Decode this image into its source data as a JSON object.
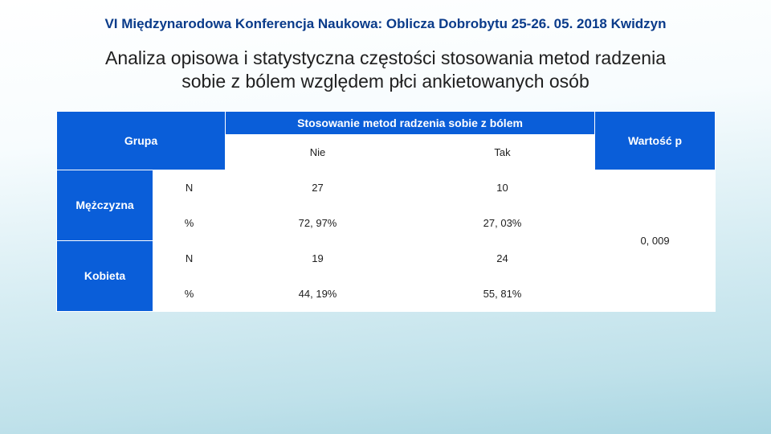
{
  "header": {
    "conference": "VI Międzynarodowa Konferencja Naukowa: Oblicza Dobrobytu 25-26. 05. 2018 Kwidzyn",
    "title_l1": "Analiza opisowa i statystyczna częstości stosowania metod radzenia",
    "title_l2": "sobie z bólem względem płci ankietowanych osób"
  },
  "table": {
    "head": {
      "grupa": "Grupa",
      "stosowanie": "Stosowanie metod radzenia sobie z bólem",
      "wartosc_p": "Wartość p",
      "nie": "Nie",
      "tak": "Tak"
    },
    "rows": {
      "mezczyzna": {
        "label": "Mężczyzna",
        "n_label": "N",
        "pct_label": "%",
        "n_nie": "27",
        "n_tak": "10",
        "pct_nie": "72, 97%",
        "pct_tak": "27, 03%"
      },
      "kobieta": {
        "label": "Kobieta",
        "n_label": "N",
        "pct_label": "%",
        "n_nie": "19",
        "n_tak": "24",
        "pct_nie": "44, 19%",
        "pct_tak": "55, 81%"
      },
      "p_value": "0, 009"
    }
  },
  "style": {
    "header_bg": "#0a5ed9",
    "header_fg": "#ffffff",
    "cell_bg": "#ffffff",
    "cell_fg": "#202020",
    "conf_title_color": "#0a3b8a",
    "main_title_color": "#202020",
    "border_color": "#ffffff",
    "bg_gradient_top": "#ffffff",
    "bg_gradient_bottom": "#a9d6e2",
    "conf_fontsize_pt": 13,
    "title_fontsize_pt": 17,
    "table_fontsize_pt": 10
  }
}
